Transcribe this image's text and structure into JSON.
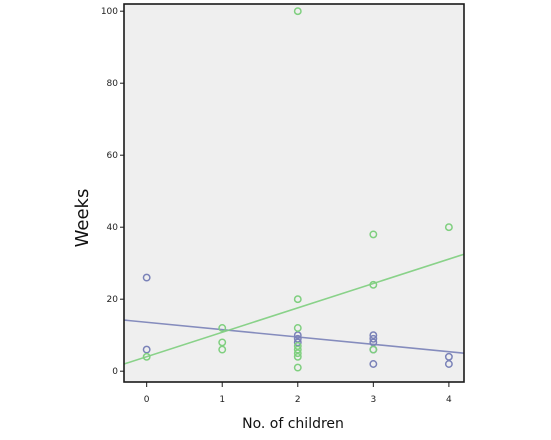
{
  "chart_data": {
    "type": "scatter",
    "xlabel": "No. of children",
    "ylabel": "Weeks",
    "x_ticks": [
      "0",
      "1",
      "2",
      "3",
      "4"
    ],
    "y_ticks": [
      "0",
      "20",
      "40",
      "60",
      "80",
      "100"
    ],
    "xlim": [
      -0.3,
      4.2
    ],
    "ylim": [
      -3,
      102
    ],
    "grid": false,
    "plot_background": "#efefef",
    "series": [
      {
        "color": "#7a82b8",
        "points": [
          [
            0,
            26
          ],
          [
            0,
            6
          ],
          [
            2,
            10
          ],
          [
            2,
            9
          ],
          [
            2,
            8
          ],
          [
            3,
            10
          ],
          [
            3,
            9
          ],
          [
            3,
            8
          ],
          [
            3,
            6
          ],
          [
            3,
            2
          ],
          [
            4,
            4
          ],
          [
            4,
            2
          ]
        ],
        "fit_line": [
          [
            -0.3,
            14.2
          ],
          [
            4.2,
            5
          ]
        ]
      },
      {
        "color": "#7fcf7f",
        "points": [
          [
            0,
            4
          ],
          [
            1,
            12
          ],
          [
            1,
            8
          ],
          [
            1,
            6
          ],
          [
            2,
            100
          ],
          [
            2,
            20
          ],
          [
            2,
            12
          ],
          [
            2,
            7
          ],
          [
            2,
            6
          ],
          [
            2,
            5
          ],
          [
            2,
            4
          ],
          [
            2,
            1
          ],
          [
            3,
            38
          ],
          [
            3,
            24
          ],
          [
            3,
            6
          ],
          [
            4,
            40
          ]
        ],
        "fit_line": [
          [
            -0.3,
            2
          ],
          [
            4.2,
            32.5
          ]
        ]
      }
    ]
  }
}
